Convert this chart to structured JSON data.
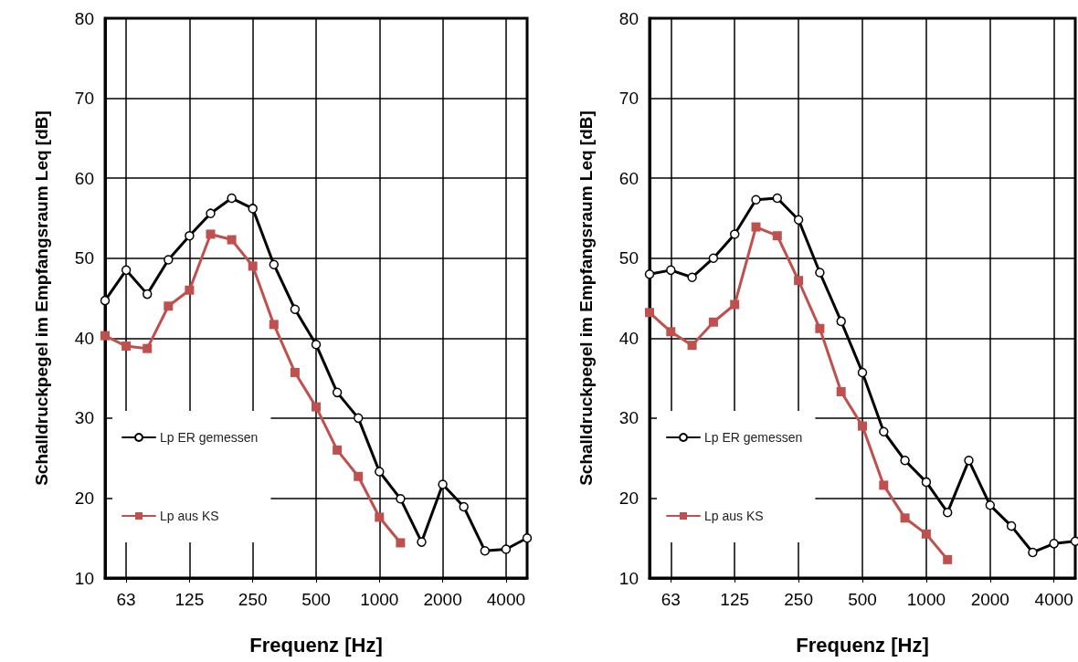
{
  "chart_data": [
    {
      "type": "line",
      "xlabel": "Frequenz [Hz]",
      "ylabel": "Schalldruckpegel im Empfangsraum Leq [dB]",
      "categories": [
        null,
        "63",
        null,
        null,
        "125",
        null,
        null,
        "250",
        null,
        null,
        "500",
        null,
        null,
        "1000",
        null,
        null,
        "2000",
        null,
        null,
        "4000",
        null
      ],
      "ylim": [
        10,
        80
      ],
      "yticks": [
        10,
        20,
        30,
        40,
        50,
        60,
        70,
        80
      ],
      "grid": true,
      "legend": "left",
      "series": [
        {
          "name": "Lp ER gemessen",
          "color": "#000000",
          "marker": "circle",
          "values": [
            44.7,
            48.5,
            45.5,
            49.8,
            52.8,
            55.6,
            57.5,
            56.2,
            49.2,
            43.6,
            39.2,
            33.2,
            30.0,
            23.3,
            19.9,
            14.5,
            21.7,
            18.9,
            13.4,
            13.6,
            15.0
          ]
        },
        {
          "name": "Lp aus KS",
          "color": "#c0504d",
          "marker": "square",
          "values": [
            40.3,
            39.0,
            38.7,
            44.0,
            46.0,
            53.0,
            52.3,
            49.0,
            41.7,
            35.7,
            31.4,
            26.0,
            22.7,
            17.6,
            14.4,
            null,
            null,
            null,
            null,
            null,
            null
          ]
        }
      ]
    },
    {
      "type": "line",
      "xlabel": "Frequenz [Hz]",
      "ylabel": "Schalldruckpegel im Empfangsraum Leq [dB]",
      "categories": [
        null,
        "63",
        null,
        null,
        "125",
        null,
        null,
        "250",
        null,
        null,
        "500",
        null,
        null,
        "1000",
        null,
        null,
        "2000",
        null,
        null,
        "4000",
        null
      ],
      "ylim": [
        10,
        80
      ],
      "yticks": [
        10,
        20,
        30,
        40,
        50,
        60,
        70,
        80
      ],
      "grid": true,
      "legend": "left",
      "series": [
        {
          "name": "Lp ER gemessen",
          "color": "#000000",
          "marker": "circle",
          "values": [
            48.0,
            48.5,
            47.6,
            50.0,
            53.0,
            57.3,
            57.5,
            54.8,
            48.2,
            42.1,
            35.7,
            28.3,
            24.7,
            22.0,
            18.2,
            24.7,
            19.1,
            16.5,
            13.2,
            14.3,
            14.6
          ]
        },
        {
          "name": "Lp aus KS",
          "color": "#c0504d",
          "marker": "square",
          "values": [
            43.2,
            40.8,
            39.1,
            42.0,
            44.2,
            53.9,
            52.8,
            47.2,
            41.2,
            33.3,
            29.0,
            21.6,
            17.5,
            15.5,
            12.3,
            null,
            null,
            null,
            null,
            null,
            null
          ]
        }
      ]
    }
  ]
}
